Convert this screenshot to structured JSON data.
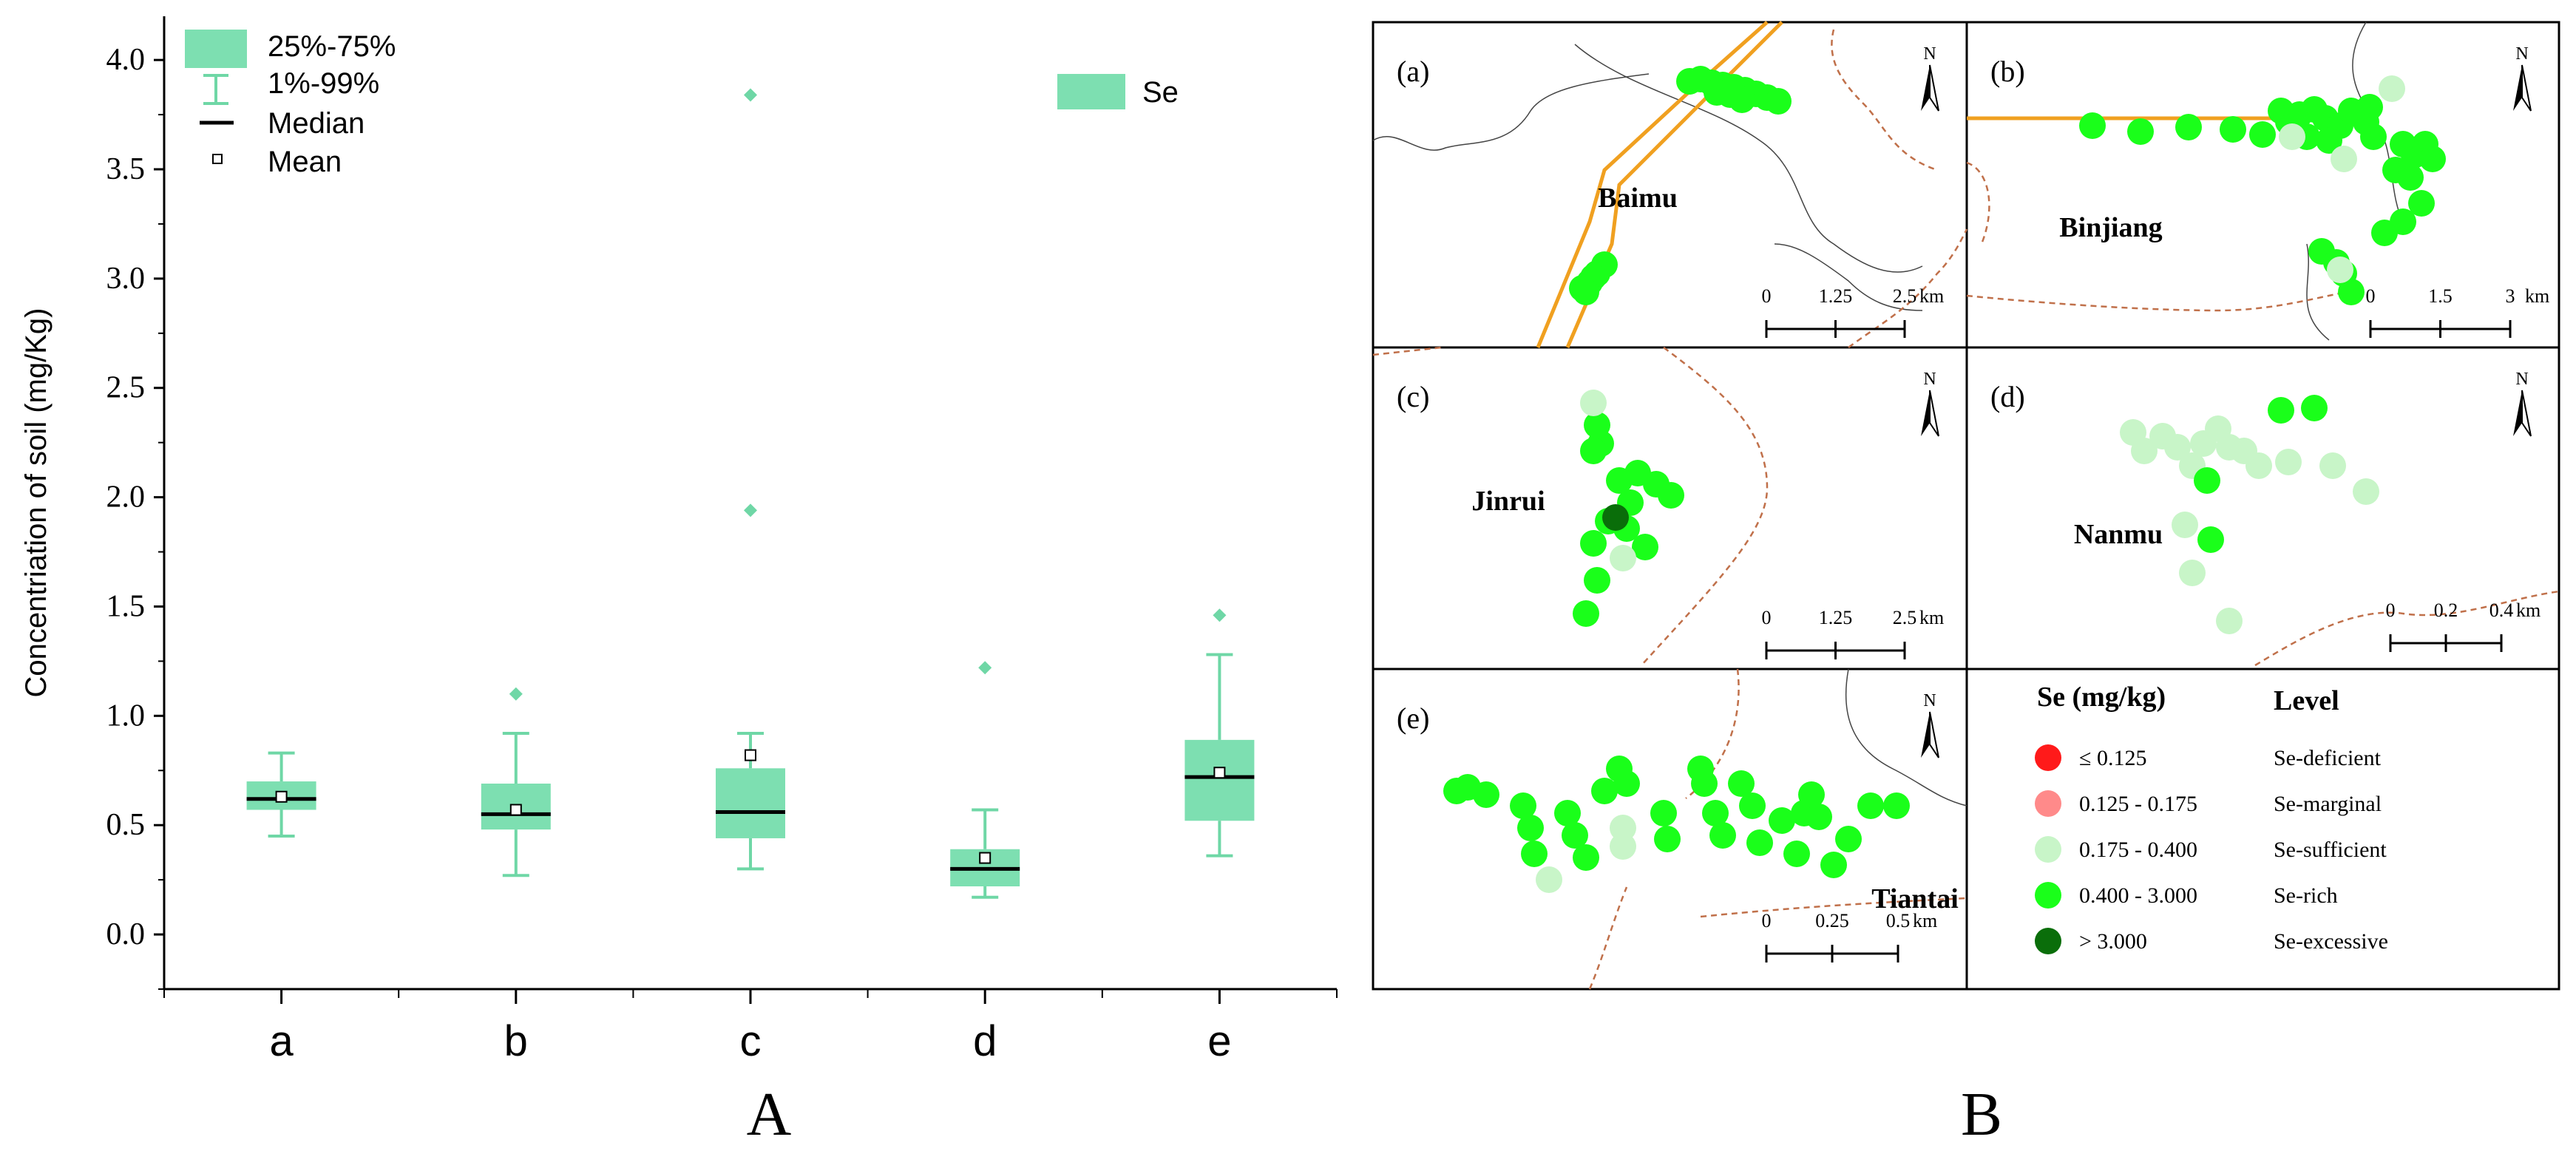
{
  "chart_data": [
    {
      "type": "box",
      "panel_label": "A",
      "title": "",
      "xlabel": "",
      "ylabel": "Concentriation of soil (mg/Kg)",
      "ylim": [
        -0.25,
        4.2
      ],
      "yticks": [
        "0.0",
        "0.5",
        "1.0",
        "1.5",
        "2.0",
        "2.5",
        "3.0",
        "3.5",
        "4.0"
      ],
      "ytick_values": [
        0,
        0.5,
        1.0,
        1.5,
        2.0,
        2.5,
        3.0,
        3.5,
        4.0
      ],
      "categories": [
        "a",
        "b",
        "c",
        "d",
        "e"
      ],
      "series_name": "Se",
      "legend": {
        "box": "25%-75%",
        "whisker": "1%-99%",
        "median": "Median",
        "mean": "Mean",
        "series": "Se"
      },
      "boxes": [
        {
          "category": "a",
          "p1": 0.45,
          "q1": 0.57,
          "median": 0.62,
          "q3": 0.7,
          "p99": 0.83,
          "mean": 0.63,
          "outliers": []
        },
        {
          "category": "b",
          "p1": 0.27,
          "q1": 0.48,
          "median": 0.55,
          "q3": 0.69,
          "p99": 0.92,
          "mean": 0.57,
          "outliers": [
            1.1
          ]
        },
        {
          "category": "c",
          "p1": 0.3,
          "q1": 0.44,
          "median": 0.56,
          "q3": 0.76,
          "p99": 0.92,
          "mean": 0.82,
          "outliers": [
            1.94,
            3.84
          ]
        },
        {
          "category": "d",
          "p1": 0.17,
          "q1": 0.22,
          "median": 0.3,
          "q3": 0.39,
          "p99": 0.57,
          "mean": 0.35,
          "outliers": [
            1.22
          ]
        },
        {
          "category": "e",
          "p1": 0.36,
          "q1": 0.52,
          "median": 0.72,
          "q3": 0.89,
          "p99": 1.28,
          "mean": 0.74,
          "outliers": [
            1.46
          ]
        }
      ],
      "colors": {
        "box": "#7ddfb1",
        "whisker": "#6fd7a6",
        "median": "#000000"
      }
    },
    {
      "type": "scatter",
      "panel_label": "B",
      "maps": [
        {
          "label": "(a)",
          "place": "Baimu",
          "scale_ticks": [
            "0",
            "1.25",
            "2.5"
          ],
          "scale_unit": "km",
          "north": "N"
        },
        {
          "label": "(b)",
          "place": "Binjiang",
          "scale_ticks": [
            "0",
            "1.5",
            "3"
          ],
          "scale_unit": "km",
          "north": "N"
        },
        {
          "label": "(c)",
          "place": "Jinrui",
          "scale_ticks": [
            "0",
            "1.25",
            "2.5"
          ],
          "scale_unit": "km",
          "north": "N"
        },
        {
          "label": "(d)",
          "place": "Nanmu",
          "scale_ticks": [
            "0",
            "0.2",
            "0.4"
          ],
          "scale_unit": "km",
          "north": "N"
        },
        {
          "label": "(e)",
          "place": "Tiantai",
          "scale_ticks": [
            "0",
            "0.25",
            "0.5"
          ],
          "scale_unit": "km",
          "north": "N"
        }
      ],
      "legend": {
        "col1": "Se (mg/kg)",
        "col2": "Level",
        "rows": [
          {
            "range": "≤ 0.125",
            "level": "Se-deficient",
            "color": "#ff1a1a"
          },
          {
            "range": "0.125 - 0.175",
            "level": "Se-marginal",
            "color": "#ff8a8a"
          },
          {
            "range": "0.175 - 0.400",
            "level": "Se-sufficient",
            "color": "#c8f5c8"
          },
          {
            "range": "0.400 - 3.000",
            "level": "Se-rich",
            "color": "#1aff1a"
          },
          {
            "range": "> 3.000",
            "level": "Se-excessive",
            "color": "#0a6e0a"
          }
        ]
      }
    }
  ]
}
